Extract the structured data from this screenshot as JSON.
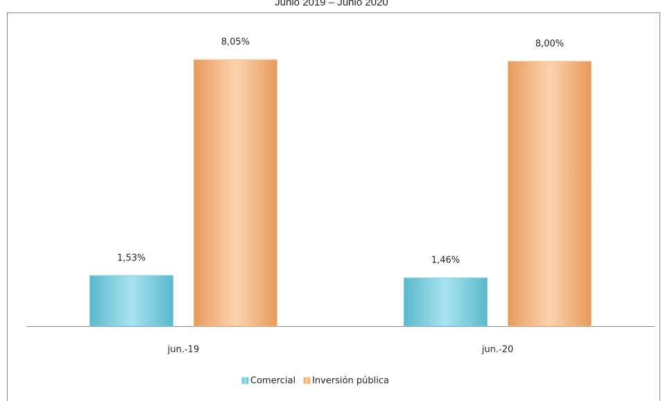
{
  "chart_data": {
    "type": "bar",
    "title": "Junio 2019 – Junio 2020",
    "categories": [
      "jun.-19",
      "jun.-20"
    ],
    "series": [
      {
        "name": "Comercial",
        "color": "#7fd0e0",
        "values": [
          1.53,
          1.46
        ],
        "value_labels": [
          "1,53%",
          "1,46%"
        ]
      },
      {
        "name": "Inversión pública",
        "color": "#f9c08c",
        "values": [
          8.05,
          8.0
        ],
        "value_labels": [
          "8,05%",
          "8,00%"
        ]
      }
    ],
    "legend": "bottom"
  }
}
